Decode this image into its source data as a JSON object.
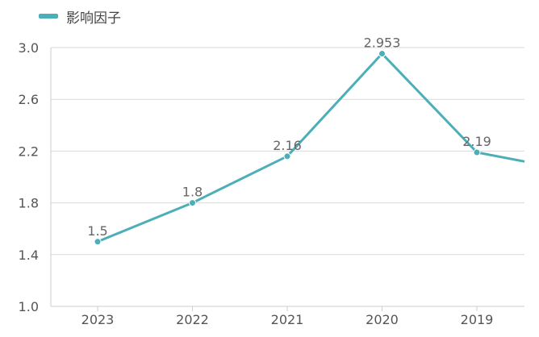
{
  "chart_data": {
    "type": "line",
    "categories": [
      "2023",
      "2022",
      "2021",
      "2020",
      "2019"
    ],
    "series": [
      {
        "name": "影响因子",
        "values": [
          1.5,
          1.8,
          2.16,
          2.953,
          2.19
        ],
        "data_labels": [
          "1.5",
          "1.8",
          "2.16",
          "2.953",
          "2.19"
        ],
        "color": "#4cafb8"
      }
    ],
    "continuation_value": 2.05,
    "yticks": [
      "1.0",
      "1.4",
      "1.8",
      "2.2",
      "2.6",
      "3.0"
    ],
    "ylim": [
      1.0,
      3.0
    ],
    "grid": true,
    "legend_position": "top-left",
    "grid_color": "#d9d9d9",
    "axis_color": "#cccccc"
  }
}
